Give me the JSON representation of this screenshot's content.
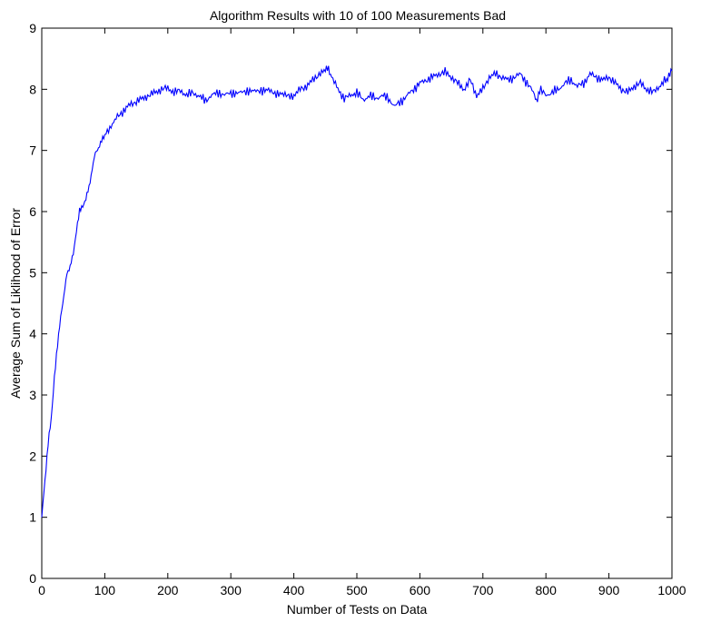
{
  "chart_data": {
    "type": "line",
    "title": "Algorithm Results with 10 of 100 Measurements Bad",
    "xlabel": "Number of Tests on Data",
    "ylabel": "Average Sum of Liklihood of Error",
    "xlim": [
      0,
      1000
    ],
    "ylim": [
      0,
      9
    ],
    "xticks": [
      0,
      100,
      200,
      300,
      400,
      500,
      600,
      700,
      800,
      900,
      1000
    ],
    "yticks": [
      0,
      1,
      2,
      3,
      4,
      5,
      6,
      7,
      8,
      9
    ],
    "grid": false,
    "legend": "none",
    "series_color": "#0000ff",
    "series": [
      {
        "x": [
          0,
          5,
          10,
          15,
          20,
          25,
          30,
          35,
          40,
          45,
          50,
          55,
          60,
          65,
          70,
          75,
          80,
          85,
          90,
          95,
          100,
          110,
          120,
          130,
          140,
          150,
          160,
          170,
          180,
          190,
          200,
          210,
          220,
          230,
          240,
          250,
          260,
          270,
          280,
          290,
          300,
          310,
          320,
          330,
          340,
          350,
          360,
          370,
          380,
          390,
          400,
          410,
          420,
          430,
          440,
          450,
          455,
          460,
          470,
          480,
          490,
          500,
          510,
          520,
          530,
          540,
          550,
          560,
          570,
          580,
          590,
          600,
          610,
          620,
          630,
          640,
          650,
          660,
          670,
          680,
          690,
          700,
          710,
          720,
          730,
          740,
          750,
          760,
          770,
          780,
          785,
          790,
          800,
          810,
          820,
          830,
          840,
          850,
          860,
          870,
          880,
          890,
          900,
          910,
          920,
          930,
          940,
          950,
          960,
          970,
          980,
          990,
          995,
          1000
        ],
        "y": [
          1.0,
          1.6,
          2.2,
          2.6,
          3.3,
          3.8,
          4.3,
          4.6,
          5.0,
          5.1,
          5.3,
          5.7,
          6.0,
          6.1,
          6.2,
          6.4,
          6.7,
          6.95,
          7.05,
          7.15,
          7.25,
          7.4,
          7.55,
          7.65,
          7.75,
          7.8,
          7.85,
          7.9,
          7.95,
          8.0,
          8.02,
          7.95,
          7.98,
          7.9,
          7.95,
          7.88,
          7.82,
          7.9,
          7.95,
          7.9,
          7.95,
          7.92,
          7.98,
          7.95,
          8.0,
          7.95,
          8.02,
          7.9,
          7.95,
          7.88,
          7.9,
          8.0,
          8.05,
          8.15,
          8.25,
          8.3,
          8.35,
          8.2,
          8.0,
          7.85,
          7.9,
          7.95,
          7.82,
          7.9,
          7.85,
          7.9,
          7.85,
          7.72,
          7.8,
          7.9,
          8.0,
          8.1,
          8.15,
          8.2,
          8.25,
          8.28,
          8.2,
          8.1,
          8.0,
          8.15,
          7.9,
          8.0,
          8.2,
          8.25,
          8.2,
          8.15,
          8.2,
          8.25,
          8.1,
          7.95,
          7.78,
          8.0,
          7.9,
          7.95,
          8.0,
          8.1,
          8.15,
          8.05,
          8.1,
          8.25,
          8.2,
          8.15,
          8.2,
          8.1,
          8.0,
          7.95,
          8.05,
          8.1,
          8.0,
          7.95,
          8.05,
          8.15,
          8.2,
          8.3
        ]
      }
    ]
  }
}
